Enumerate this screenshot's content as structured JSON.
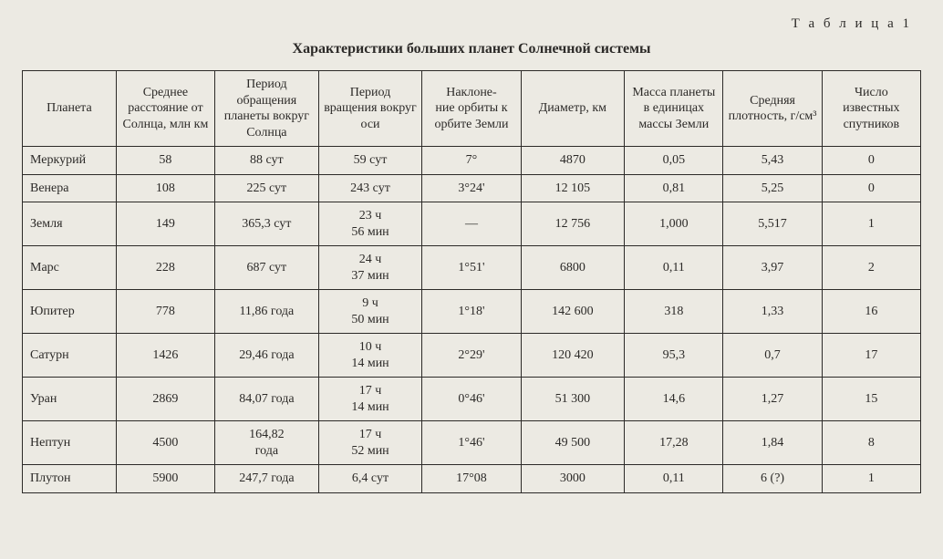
{
  "table_label": "Т а б л и ц а  1",
  "title": "Характеристики больших планет Солнечной системы",
  "columns": [
    "Планета",
    "Среднее расстояние от Солнца, млн км",
    "Период обращения планеты вокруг Солнца",
    "Период вращения вокруг оси",
    "Наклоне-\nние орбиты к орбите Земли",
    "Диаметр, км",
    "Масса планеты в единицах массы Земли",
    "Средняя плотность, г/см³",
    "Число известных спутников"
  ],
  "rows": [
    [
      "Меркурий",
      "58",
      "88 сут",
      "59 сут",
      "7°",
      "4870",
      "0,05",
      "5,43",
      "0"
    ],
    [
      "Венера",
      "108",
      "225 сут",
      "243 сут",
      "3°24'",
      "12 105",
      "0,81",
      "5,25",
      "0"
    ],
    [
      "Земля",
      "149",
      "365,3 сут",
      "23 ч\n56 мин",
      "—",
      "12 756",
      "1,000",
      "5,517",
      "1"
    ],
    [
      "Марс",
      "228",
      "687 сут",
      "24 ч\n37 мин",
      "1°51'",
      "6800",
      "0,11",
      "3,97",
      "2"
    ],
    [
      "Юпитер",
      "778",
      "11,86 года",
      "9 ч\n50 мин",
      "1°18'",
      "142 600",
      "318",
      "1,33",
      "16"
    ],
    [
      "Сатурн",
      "1426",
      "29,46 года",
      "10 ч\n14 мин",
      "2°29'",
      "120 420",
      "95,3",
      "0,7",
      "17"
    ],
    [
      "Уран",
      "2869",
      "84,07 года",
      "17 ч\n14 мин",
      "0°46'",
      "51 300",
      "14,6",
      "1,27",
      "15"
    ],
    [
      "Нептун",
      "4500",
      "164,82\nгода",
      "17 ч\n52 мин",
      "1°46'",
      "49 500",
      "17,28",
      "1,84",
      "8"
    ],
    [
      "Плутон",
      "5900",
      "247,7 года",
      "6,4 сут",
      "17°08",
      "3000",
      "0,11",
      "6 (?)",
      "1"
    ]
  ]
}
